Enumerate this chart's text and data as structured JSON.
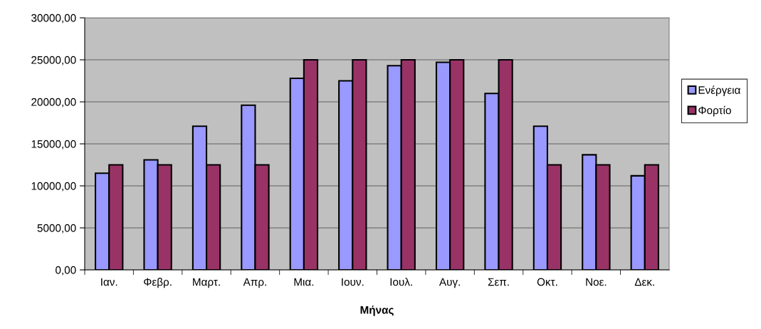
{
  "chart_data": {
    "type": "bar",
    "xlabel": "Μήνας",
    "categories": [
      "Ιαν.",
      "Φεβρ.",
      "Μαρτ.",
      "Απρ.",
      "Μια.",
      "Ιουν.",
      "Ιουλ.",
      "Αυγ.",
      "Σεπ.",
      "Οκτ.",
      "Νοε.",
      "Δεκ."
    ],
    "series": [
      {
        "name": "Ενέργεια",
        "color": "#9999ff",
        "values": [
          11500,
          13100,
          17100,
          19600,
          22800,
          22500,
          24300,
          24700,
          21000,
          17100,
          13700,
          11200
        ]
      },
      {
        "name": "Φορτίο",
        "color": "#993366",
        "values": [
          12500,
          12500,
          12500,
          12500,
          25000,
          25000,
          25000,
          25000,
          25000,
          12500,
          12500,
          12500
        ]
      }
    ],
    "ylim": [
      0,
      30000
    ],
    "yticks": [
      {
        "value": 0,
        "label": "0,00"
      },
      {
        "value": 5000,
        "label": "5000,00"
      },
      {
        "value": 10000,
        "label": "10000,00"
      },
      {
        "value": 15000,
        "label": "15000,00"
      },
      {
        "value": 20000,
        "label": "20000,00"
      },
      {
        "value": 25000,
        "label": "25000,00"
      },
      {
        "value": 30000,
        "label": "30000,00"
      }
    ],
    "grid": "y",
    "legend": "right"
  }
}
